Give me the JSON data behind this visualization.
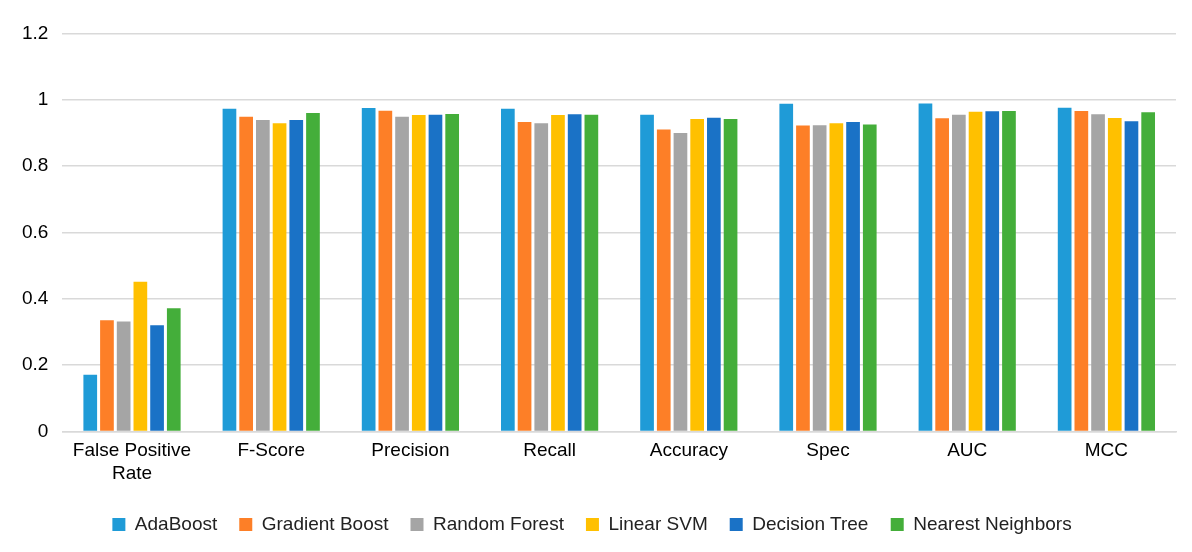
{
  "chart_data": {
    "type": "bar",
    "categories": [
      "False Positive Rate",
      "F-Score",
      "Precision",
      "Recall",
      "Accuracy",
      "Spec",
      "AUC",
      "MCC"
    ],
    "series": [
      {
        "name": "AdaBoost",
        "color": "#1f9bd7",
        "values": [
          0.171,
          0.973,
          0.975,
          0.973,
          0.955,
          0.988,
          0.989,
          0.976
        ]
      },
      {
        "name": "Gradient Boost",
        "color": "#fd7f27",
        "values": [
          0.335,
          0.949,
          0.967,
          0.933,
          0.91,
          0.922,
          0.944,
          0.966
        ]
      },
      {
        "name": "Random Forest",
        "color": "#a5a5a5",
        "values": [
          0.331,
          0.939,
          0.949,
          0.929,
          0.9,
          0.923,
          0.955,
          0.956
        ]
      },
      {
        "name": "Linear SVM",
        "color": "#ffc000",
        "values": [
          0.451,
          0.929,
          0.954,
          0.954,
          0.942,
          0.929,
          0.964,
          0.945
        ]
      },
      {
        "name": "Decision Tree",
        "color": "#1a72c6",
        "values": [
          0.32,
          0.939,
          0.955,
          0.956,
          0.946,
          0.933,
          0.965,
          0.935
        ]
      },
      {
        "name": "Nearest Neighbors",
        "color": "#44ae3a",
        "values": [
          0.371,
          0.96,
          0.957,
          0.955,
          0.942,
          0.925,
          0.966,
          0.962
        ]
      }
    ],
    "ylim": [
      0,
      1.2
    ],
    "yticks": [
      0,
      0.2,
      0.4,
      0.6,
      0.8,
      1,
      1.2
    ],
    "grid": "y",
    "legend": "bottom"
  }
}
